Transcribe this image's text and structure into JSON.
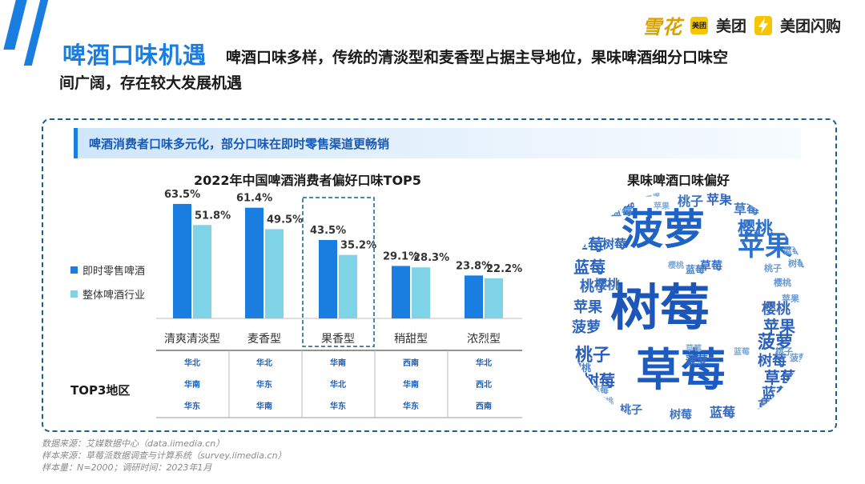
{
  "header": {
    "title": "啤酒口味机遇",
    "subtitle_line1": "啤酒口味多样，传统的清淡型和麦香型占据主导地位，果味啤酒细分口味空",
    "subtitle_line2": "间广阔，存在较大发展机遇"
  },
  "logos": {
    "xuehua": "雪花",
    "meituan_badge": "美团",
    "meituan": "美团",
    "meituan_shangou": "美团闪购"
  },
  "banner": "啤酒消费者口味多元化，部分口味在即时零售渠道更畅销",
  "chart_data": [
    {
      "type": "bar",
      "title": "2022年中国啤酒消费者偏好口味TOP5",
      "categories": [
        "清爽清淡型",
        "麦香型",
        "果香型",
        "稍甜型",
        "浓烈型"
      ],
      "series": [
        {
          "name": "即时零售啤酒",
          "values": [
            63.5,
            61.4,
            43.5,
            29.1,
            23.8
          ],
          "labels": [
            "63.5%",
            "61.4%",
            "43.5%",
            "29.1%",
            "23.8%"
          ],
          "color": "#1a7de0"
        },
        {
          "name": "整体啤酒行业",
          "values": [
            51.8,
            49.5,
            35.2,
            28.3,
            22.2
          ],
          "labels": [
            "51.8%",
            "49.5%",
            "35.2%",
            "28.3%",
            "22.2%"
          ],
          "color": "#7fd3e6"
        }
      ],
      "ylim": [
        0,
        70
      ],
      "highlighted_category": "果香型",
      "legend_position": "left",
      "grid": false
    },
    {
      "type": "table",
      "row_label": "TOP3地区",
      "columns": [
        "清爽清淡型",
        "麦香型",
        "果香型",
        "稍甜型",
        "浓烈型"
      ],
      "values": [
        [
          "华北",
          "华北",
          "华南",
          "西南",
          "华北"
        ],
        [
          "华南",
          "华东",
          "华北",
          "华南",
          "西北"
        ],
        [
          "华东",
          "华南",
          "华东",
          "华东",
          "西南"
        ]
      ]
    }
  ],
  "wordcloud": {
    "title": "果味啤酒口味偏好",
    "words": [
      {
        "text": "菠萝",
        "size": 52,
        "color": "#1e62c6"
      },
      {
        "text": "树莓",
        "size": 62,
        "color": "#1b56b8"
      },
      {
        "text": "草莓",
        "size": 56,
        "color": "#1c5bc0"
      },
      {
        "text": "苹果",
        "size": 34,
        "color": "#2b73cf"
      },
      {
        "text": "樱桃",
        "size": 22,
        "color": "#2f6fc8"
      },
      {
        "text": "桃子",
        "size": 16,
        "color": "#3a72c4"
      },
      {
        "text": "苹果",
        "size": 16,
        "color": "#2f66bf"
      },
      {
        "text": "草莓",
        "size": 16,
        "color": "#3b78c9"
      },
      {
        "text": "蓝莓",
        "size": 14,
        "color": "#4e87c9"
      },
      {
        "text": "樱桃",
        "size": 15,
        "color": "#3067bd"
      },
      {
        "text": "树莓",
        "size": 15,
        "color": "#2e65bd"
      },
      {
        "text": "草莓",
        "size": 20,
        "color": "#2d67c3"
      },
      {
        "text": "蓝莓",
        "size": 20,
        "color": "#2b63bf"
      },
      {
        "text": "樱桃",
        "size": 16,
        "color": "#3a6fc0"
      },
      {
        "text": "桃子",
        "size": 18,
        "color": "#3569c0"
      },
      {
        "text": "苹果",
        "size": 18,
        "color": "#2f66bf"
      },
      {
        "text": "菠萝",
        "size": 18,
        "color": "#2d64bd"
      },
      {
        "text": "桃子",
        "size": 22,
        "color": "#2b5fbb"
      },
      {
        "text": "树莓",
        "size": 20,
        "color": "#2a5dba"
      },
      {
        "text": "樱桃",
        "size": 12,
        "color": "#4a7fc6"
      },
      {
        "text": "桃子",
        "size": 14,
        "color": "#3f73c2"
      },
      {
        "text": "树莓",
        "size": 14,
        "color": "#3f73c2"
      },
      {
        "text": "蓝莓",
        "size": 16,
        "color": "#3468bf"
      },
      {
        "text": "樱桃",
        "size": 18,
        "color": "#3468bf"
      },
      {
        "text": "苹果",
        "size": 20,
        "color": "#2c63bd"
      },
      {
        "text": "菠萝",
        "size": 22,
        "color": "#2a5fbb"
      },
      {
        "text": "树莓",
        "size": 18,
        "color": "#2e62bc"
      },
      {
        "text": "草莓",
        "size": 20,
        "color": "#2a5fbb"
      },
      {
        "text": "蓝莓",
        "size": 18,
        "color": "#3166be"
      },
      {
        "text": "草莓",
        "size": 16,
        "color": "#3468bf"
      },
      {
        "text": "菠萝",
        "size": 14,
        "color": "#3a6ec1"
      },
      {
        "text": "蓝莓",
        "size": 12,
        "color": "#4c83c8"
      },
      {
        "text": "草莓",
        "size": 14,
        "color": "#3a6ec1"
      },
      {
        "text": "桃子",
        "size": 11,
        "color": "#6a9ad0"
      },
      {
        "text": "樱桃",
        "size": 11,
        "color": "#6a9ad0"
      },
      {
        "text": "苹果",
        "size": 11,
        "color": "#6a9ad0"
      },
      {
        "text": "蓝莓",
        "size": 11,
        "color": "#6a9ad0"
      },
      {
        "text": "树莓",
        "size": 11,
        "color": "#6a9ad0"
      },
      {
        "text": "菠萝",
        "size": 11,
        "color": "#6a9ad0"
      },
      {
        "text": "桃子",
        "size": 11,
        "color": "#6a9ad0"
      },
      {
        "text": "草莓",
        "size": 11,
        "color": "#6a9ad0"
      },
      {
        "text": "樱桃",
        "size": 10,
        "color": "#82acd8"
      },
      {
        "text": "蓝莓",
        "size": 10,
        "color": "#82acd8"
      },
      {
        "text": "苹果",
        "size": 10,
        "color": "#82acd8"
      },
      {
        "text": "树莓",
        "size": 10,
        "color": "#82acd8"
      },
      {
        "text": "桃子",
        "size": 10,
        "color": "#82acd8"
      },
      {
        "text": "菠萝",
        "size": 10,
        "color": "#82acd8"
      },
      {
        "text": "草莓",
        "size": 10,
        "color": "#82acd8"
      },
      {
        "text": "蓝莓",
        "size": 10,
        "color": "#82acd8"
      },
      {
        "text": "樱桃",
        "size": 10,
        "color": "#82acd8"
      }
    ]
  },
  "footnotes": [
    "数据来源：艾媒数据中心（data.iimedia.cn）",
    "样本来源：草莓派数据调查与计算系统（survey.iimedia.cn）",
    "样本量：N=2000；调研时间：2023年1月"
  ]
}
